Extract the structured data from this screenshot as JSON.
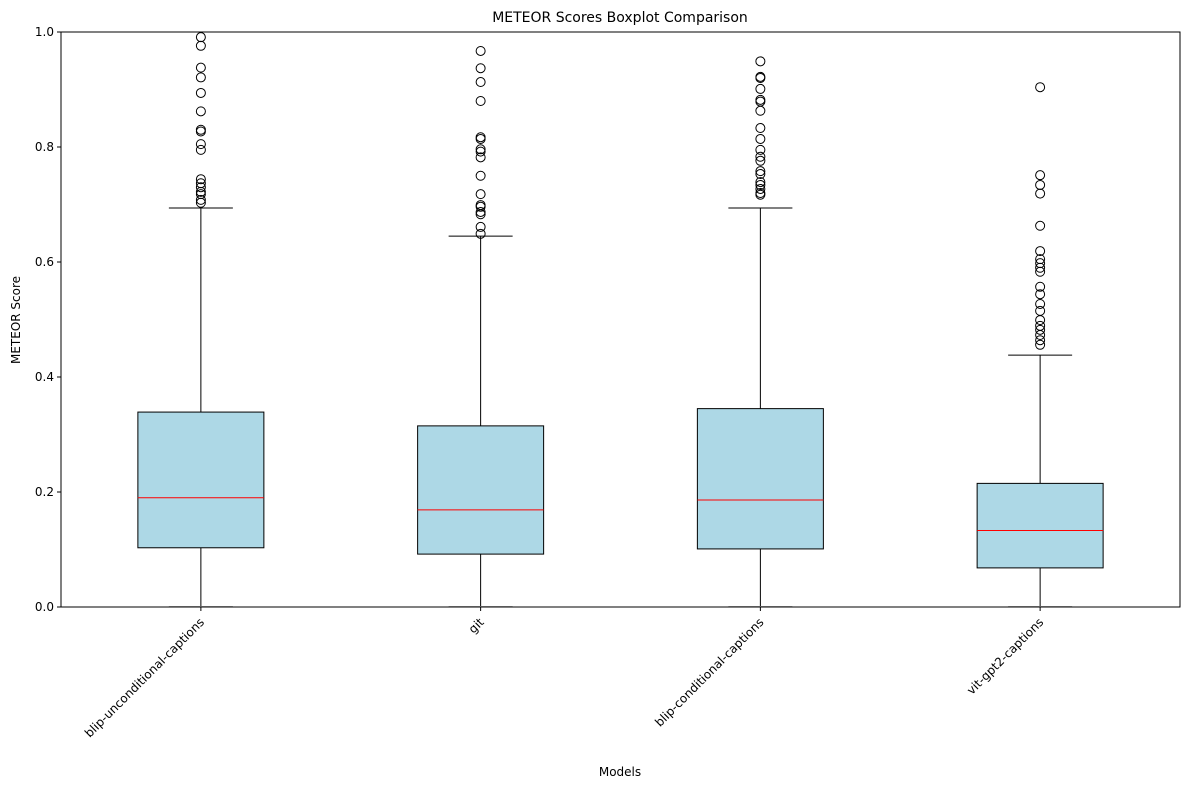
{
  "chart_data": {
    "type": "boxplot",
    "title": "METEOR Scores Boxplot Comparison",
    "xlabel": "Models",
    "ylabel": "METEOR Score",
    "ylim": [
      0.0,
      1.0
    ],
    "yticks": [
      "0.0",
      "0.2",
      "0.4",
      "0.6",
      "0.8",
      "1.0"
    ],
    "grid": false,
    "colors": {
      "box_fill": "#add8e6",
      "box_edge": "#000000",
      "median": "#ff0000",
      "whisker": "#000000",
      "lower_cap": "#b0b0b0",
      "flier_edge": "#000000"
    },
    "categories": [
      "blip-unconditional-captions",
      "git",
      "blip-conditional-captions",
      "vit-gpt2-captions"
    ],
    "series": [
      {
        "name": "blip-unconditional-captions",
        "whisker_low": 0.0,
        "q1": 0.103,
        "median": 0.19,
        "q3": 0.339,
        "whisker_high": 0.694,
        "fliers": [
          0.991,
          0.976,
          0.938,
          0.921,
          0.894,
          0.862,
          0.83,
          0.827,
          0.805,
          0.795,
          0.744,
          0.737,
          0.73,
          0.722,
          0.718,
          0.708,
          0.703
        ]
      },
      {
        "name": "git",
        "whisker_low": 0.0,
        "q1": 0.092,
        "median": 0.169,
        "q3": 0.315,
        "whisker_high": 0.645,
        "fliers": [
          0.967,
          0.937,
          0.913,
          0.88,
          0.817,
          0.814,
          0.796,
          0.792,
          0.782,
          0.75,
          0.718,
          0.699,
          0.696,
          0.687,
          0.683,
          0.661,
          0.649
        ]
      },
      {
        "name": "blip-conditional-captions",
        "whisker_low": 0.0,
        "q1": 0.101,
        "median": 0.186,
        "q3": 0.345,
        "whisker_high": 0.694,
        "fliers": [
          0.949,
          0.922,
          0.92,
          0.901,
          0.882,
          0.879,
          0.863,
          0.833,
          0.814,
          0.795,
          0.783,
          0.776,
          0.758,
          0.753,
          0.739,
          0.734,
          0.727,
          0.72,
          0.717
        ]
      },
      {
        "name": "vit-gpt2-captions",
        "whisker_low": 0.0,
        "q1": 0.068,
        "median": 0.133,
        "q3": 0.215,
        "whisker_high": 0.438,
        "fliers": [
          0.904,
          0.751,
          0.734,
          0.719,
          0.663,
          0.619,
          0.605,
          0.598,
          0.59,
          0.583,
          0.557,
          0.544,
          0.527,
          0.515,
          0.499,
          0.489,
          0.482,
          0.473,
          0.464,
          0.456
        ]
      }
    ]
  }
}
